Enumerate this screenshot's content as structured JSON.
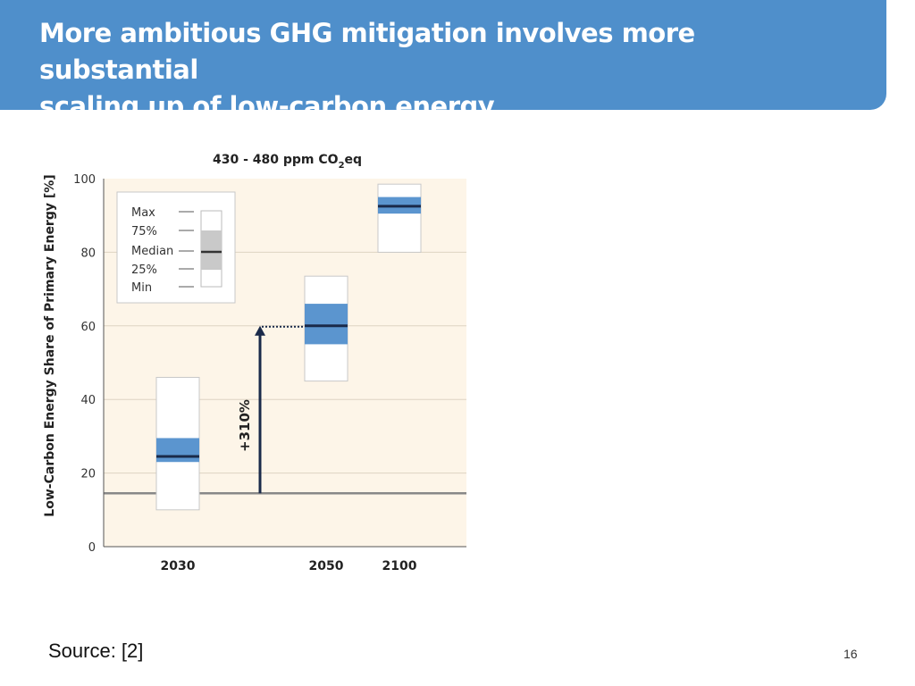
{
  "header": {
    "title_line1": "More ambitious GHG mitigation involves more substantial",
    "title_line2": "scaling up of low-carbon energy."
  },
  "footer": {
    "source": "Source:  [2]",
    "page_number": "16"
  },
  "colors": {
    "header_bg": "#4f8fcb",
    "plot_bg": "#fdf5e8",
    "iqr_fill": "#5b95cf",
    "median_line": "#1a2a4a",
    "baseline": "#888888",
    "arrow": "#1a2a4a"
  },
  "chart_data": {
    "type": "boxplot",
    "title_main": "430 - 480 ppm CO",
    "title_sub": "2",
    "title_tail": "eq",
    "ylabel": "Low-Carbon Energy Share of Primary Energy [%]",
    "ylim": [
      0,
      100
    ],
    "yticks": [
      0,
      20,
      40,
      60,
      80,
      100
    ],
    "categories": [
      "2030",
      "2050",
      "2100"
    ],
    "boxes": [
      {
        "year": "2030",
        "min": 10,
        "q1": 23,
        "median": 24.5,
        "q3": 29.5,
        "max": 46
      },
      {
        "year": "2050",
        "min": 45,
        "q1": 55,
        "median": 60,
        "q3": 66,
        "max": 73.5
      },
      {
        "year": "2100",
        "min": 80,
        "q1": 90.5,
        "median": 92.5,
        "q3": 95,
        "max": 98.5
      }
    ],
    "baseline_value": 14.5,
    "arrow": {
      "from": 14.5,
      "to": 60,
      "label": "+310%"
    },
    "legend": {
      "items": [
        "Max",
        "75%",
        "Median",
        "25%",
        "Min"
      ],
      "placement": "top-left"
    }
  }
}
